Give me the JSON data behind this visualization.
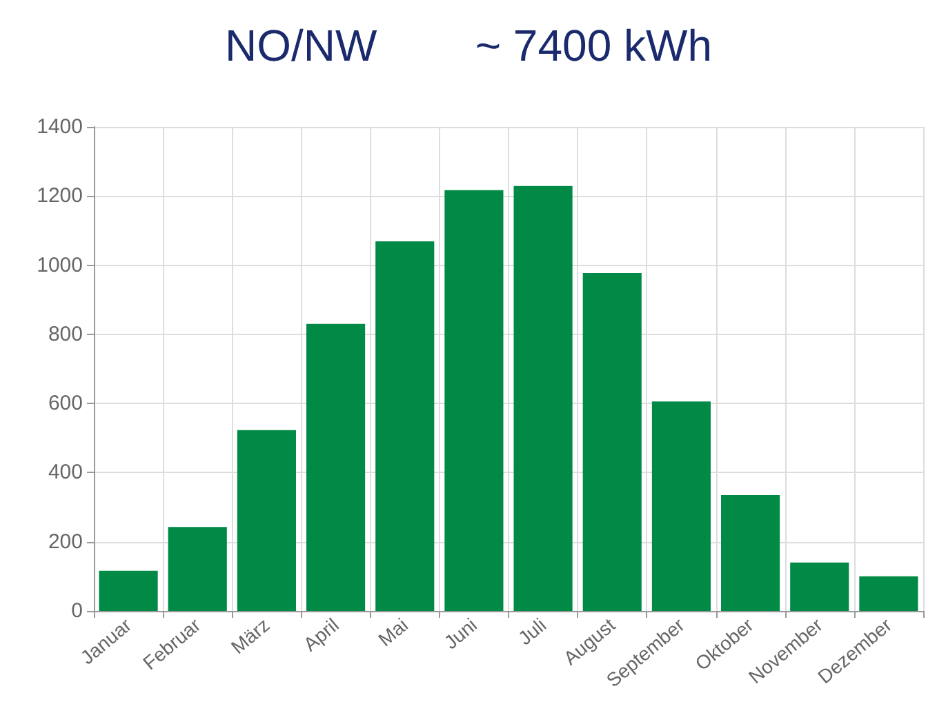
{
  "chart_data": {
    "type": "bar",
    "title": "NO/NW        ~ 7400 kWh",
    "categories": [
      "Januar",
      "Februar",
      "März",
      "April",
      "Mai",
      "Juni",
      "Juli",
      "August",
      "September",
      "Oktober",
      "November",
      "Dezember"
    ],
    "values": [
      116,
      243,
      523,
      830,
      1069,
      1217,
      1229,
      977,
      606,
      335,
      140,
      100
    ],
    "color": "#008a45",
    "ylim": [
      0,
      1400
    ],
    "yticks": [
      0,
      200,
      400,
      600,
      800,
      1000,
      1200,
      1400
    ],
    "grid": true
  }
}
